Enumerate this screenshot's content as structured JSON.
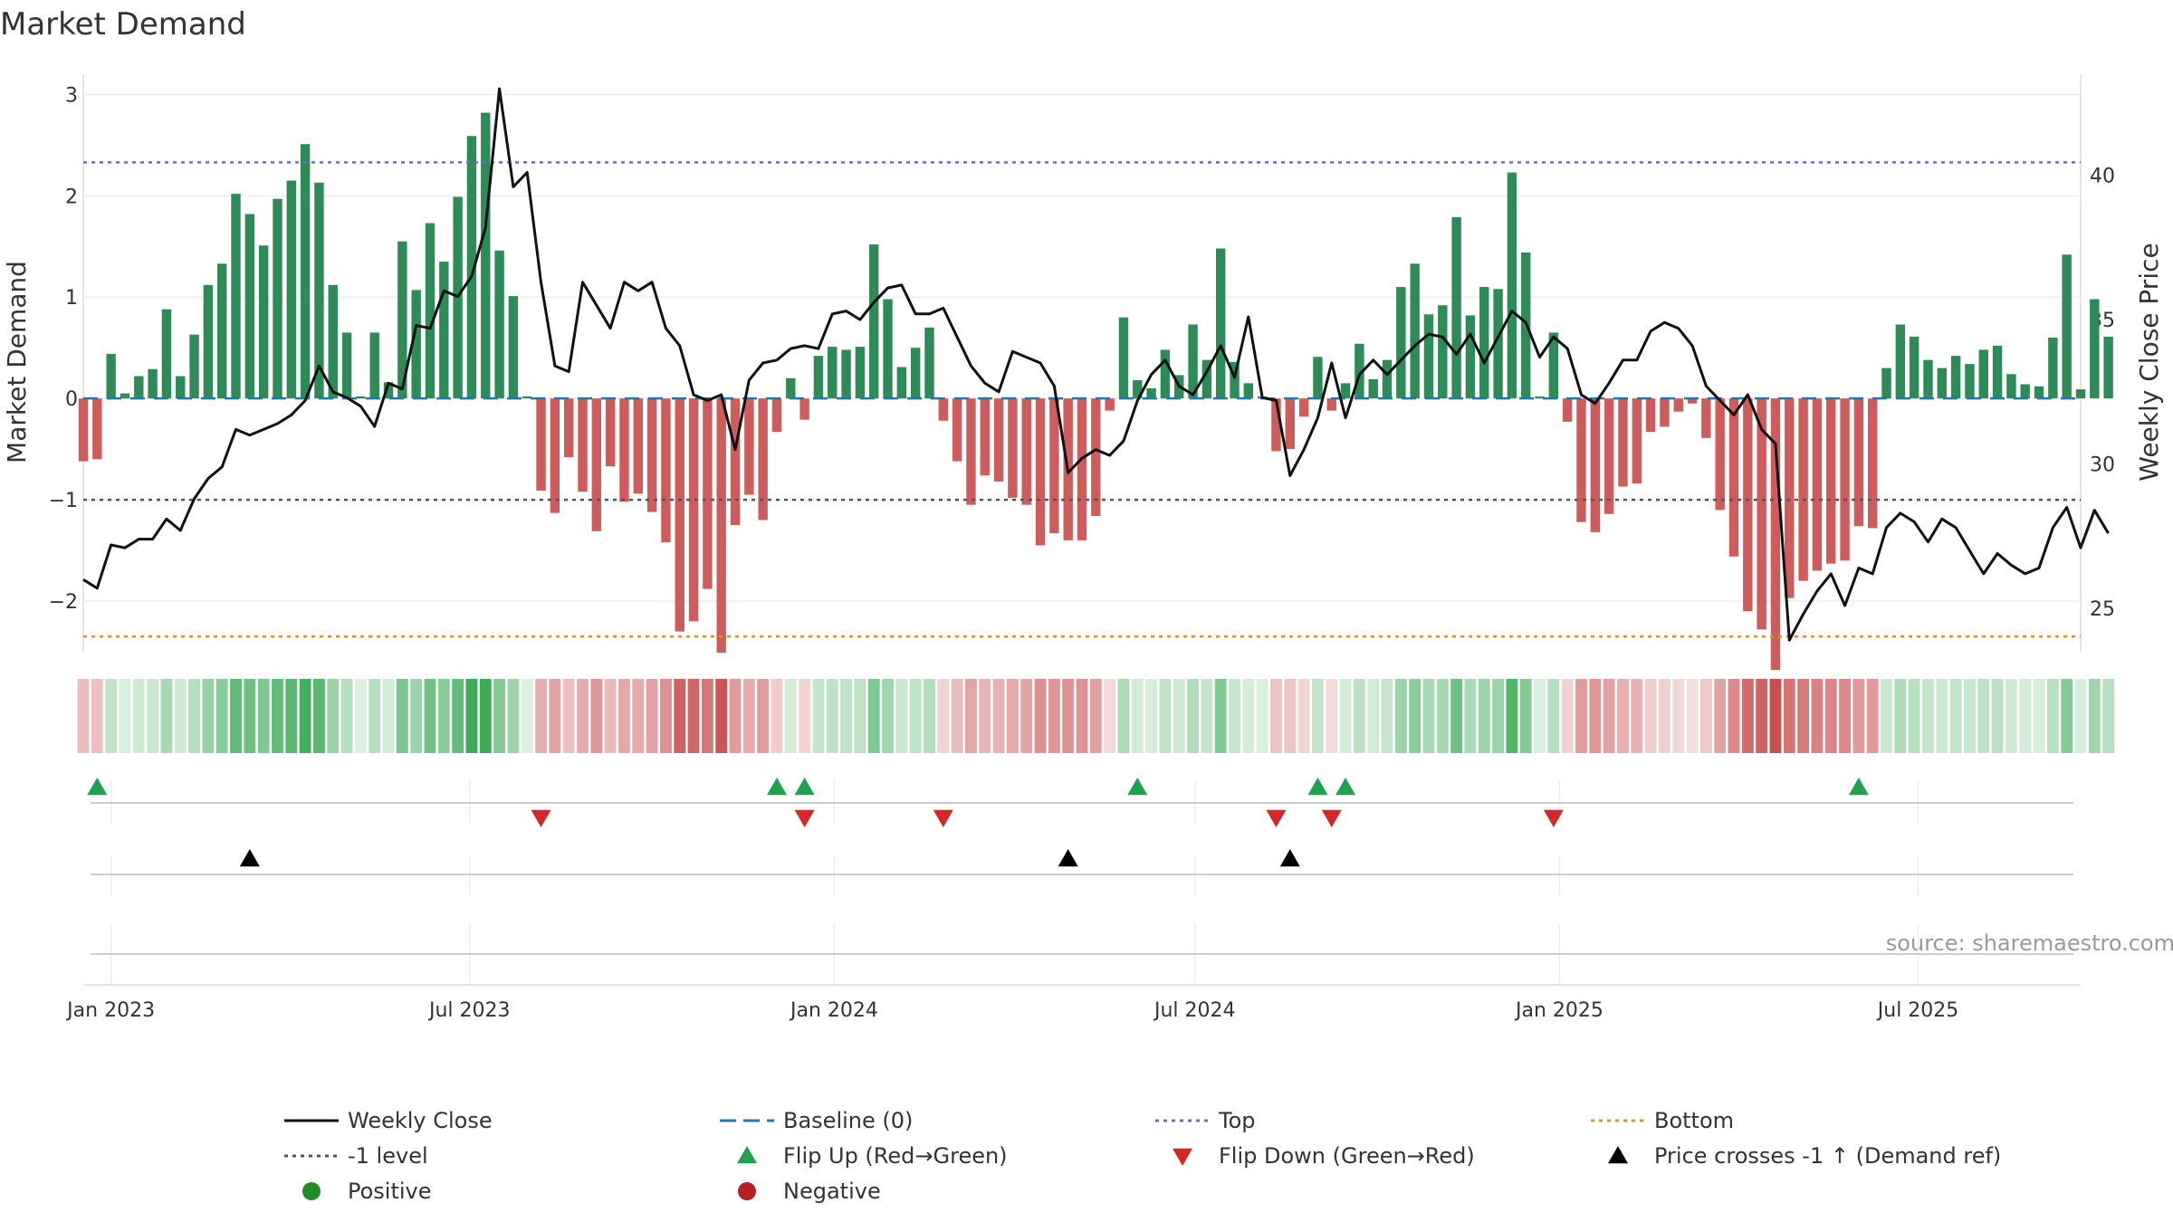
{
  "chart_data": {
    "type": "bar",
    "title": "Market Demand",
    "ylabel": "Market Demand",
    "y2label": "Weekly Close Price",
    "ylim": [
      -2.5,
      3.2
    ],
    "y_ticks": [
      3,
      2,
      1,
      0,
      -1,
      -2
    ],
    "y_tick_labels": [
      "3",
      "2",
      "1",
      "0",
      "−1",
      "−2"
    ],
    "y2lim": [
      23.5,
      43.5
    ],
    "y2_ticks": [
      40,
      35,
      30,
      25
    ],
    "y2_tick_labels": [
      "40",
      "35",
      "30",
      "25"
    ],
    "x_start": "2022-12-18",
    "x_end": "2025-09-21",
    "x_tick_dates": [
      "2023-01-01",
      "2023-07-01",
      "2024-01-01",
      "2024-07-01",
      "2025-01-01",
      "2025-07-01"
    ],
    "x_tick_labels": [
      "Jan 2023",
      "Jul 2023",
      "Jan 2024",
      "Jul 2024",
      "Jan 2025",
      "Jul 2025"
    ],
    "first_week": "2022-12-18",
    "reference_lines": {
      "top": 2.33,
      "bottom": -2.35,
      "minus_one": -1,
      "baseline": 0
    },
    "colors": {
      "positive": "#2e8b57",
      "negative": "#cd5c5c",
      "price": "#111111",
      "baseline": "#1f77b4",
      "top": "#6c6cc8",
      "bottom": "#e09020",
      "minus_one": "#555555",
      "flip_up": "#22a050",
      "flip_down": "#d62728",
      "cross": "#000000",
      "legend_positive": "#228b22",
      "legend_negative": "#b22222"
    },
    "demand": [
      -0.62,
      -0.6,
      0.44,
      0.05,
      0.22,
      0.29,
      0.88,
      0.22,
      0.63,
      1.12,
      1.33,
      2.02,
      1.82,
      1.51,
      1.97,
      2.15,
      2.51,
      2.13,
      1.12,
      0.65,
      0.02,
      0.65,
      0.16,
      1.55,
      1.07,
      1.73,
      1.35,
      1.99,
      2.59,
      2.82,
      1.46,
      1.01,
      0.02,
      -0.91,
      -1.13,
      -0.58,
      -0.92,
      -1.31,
      -0.67,
      -1.02,
      -0.94,
      -1.12,
      -1.42,
      -2.3,
      -2.2,
      -1.88,
      -2.51,
      -1.25,
      -0.95,
      -1.2,
      -0.33,
      0.2,
      -0.21,
      0.42,
      0.51,
      0.48,
      0.51,
      1.52,
      0.98,
      0.31,
      0.5,
      0.7,
      -0.22,
      -0.62,
      -1.05,
      -0.76,
      -0.82,
      -0.98,
      -1.05,
      -1.45,
      -1.33,
      -1.4,
      -1.4,
      -1.16,
      -0.12,
      0.8,
      0.18,
      0.1,
      0.48,
      0.23,
      0.73,
      0.38,
      1.48,
      0.36,
      0.15,
      0.02,
      -0.52,
      -0.5,
      -0.18,
      0.41,
      -0.12,
      0.15,
      0.54,
      0.19,
      0.38,
      1.1,
      1.33,
      0.83,
      0.92,
      1.79,
      0.82,
      1.1,
      1.08,
      2.23,
      1.44,
      0.02,
      0.65,
      -0.23,
      -1.22,
      -1.32,
      -1.14,
      -0.87,
      -0.84,
      -0.33,
      -0.28,
      -0.13,
      -0.05,
      -0.39,
      -1.1,
      -1.56,
      -2.1,
      -2.28,
      -2.68,
      -1.97,
      -1.8,
      -1.7,
      -1.63,
      -1.6,
      -1.26,
      -1.28,
      0.3,
      0.73,
      0.61,
      0.38,
      0.3,
      0.42,
      0.34,
      0.48,
      0.52,
      0.24,
      0.14,
      0.12,
      0.6,
      1.42,
      0.09,
      0.98,
      0.61
    ],
    "price": [
      26.0,
      25.7,
      27.2,
      27.1,
      27.4,
      27.4,
      28.1,
      27.7,
      28.8,
      29.5,
      29.9,
      31.2,
      31.0,
      31.2,
      31.4,
      31.7,
      32.2,
      33.4,
      32.5,
      32.3,
      32.0,
      31.3,
      32.8,
      32.6,
      34.8,
      34.7,
      36.0,
      35.8,
      36.5,
      38.2,
      43.0,
      39.6,
      40.1,
      36.3,
      33.4,
      33.2,
      36.3,
      35.5,
      34.7,
      36.3,
      36.0,
      36.3,
      34.7,
      34.1,
      32.4,
      32.2,
      32.4,
      30.5,
      32.9,
      33.5,
      33.6,
      34.0,
      34.1,
      34.0,
      35.2,
      35.3,
      35.0,
      35.6,
      36.1,
      36.2,
      35.2,
      35.2,
      35.4,
      34.4,
      33.4,
      32.8,
      32.5,
      33.9,
      33.7,
      33.5,
      32.7,
      29.7,
      30.2,
      30.5,
      30.3,
      30.8,
      32.2,
      33.1,
      33.6,
      32.7,
      32.4,
      33.2,
      34.1,
      33.0,
      35.1,
      32.3,
      32.2,
      29.6,
      30.5,
      31.6,
      33.5,
      31.6,
      33.1,
      33.6,
      33.1,
      33.6,
      34.1,
      34.5,
      34.4,
      33.8,
      34.5,
      33.5,
      34.4,
      35.3,
      34.9,
      33.7,
      34.4,
      34.0,
      32.4,
      32.1,
      32.8,
      33.6,
      33.6,
      34.6,
      34.9,
      34.7,
      34.1,
      32.7,
      32.2,
      31.7,
      32.4,
      31.2,
      30.7,
      23.9,
      24.8,
      25.6,
      26.2,
      25.1,
      26.4,
      26.2,
      27.8,
      28.3,
      28.0,
      27.3,
      28.1,
      27.8,
      27.0,
      26.2,
      26.9,
      26.5,
      26.2,
      26.4,
      27.8,
      28.5,
      27.1,
      28.4,
      27.6
    ],
    "flip_up_weeks": [
      1,
      50,
      52,
      76,
      89,
      91,
      128
    ],
    "flip_down_weeks": [
      33,
      52,
      62,
      86,
      90,
      106
    ],
    "cross_weeks": [
      12,
      71,
      87
    ],
    "legend": [
      {
        "label": "Weekly Close",
        "marker": "line",
        "color": "#111111"
      },
      {
        "label": "Baseline (0)",
        "marker": "dash",
        "color": "#1f77b4"
      },
      {
        "label": "Top",
        "marker": "dot",
        "color": "#6c6cc8"
      },
      {
        "label": "Bottom",
        "marker": "dot",
        "color": "#e09020"
      },
      {
        "label": "-1 level",
        "marker": "dot",
        "color": "#555555"
      },
      {
        "label": "Flip Up (Red→Green)",
        "marker": "tri-up",
        "color": "#22a050"
      },
      {
        "label": "Flip Down (Green→Red)",
        "marker": "tri-down",
        "color": "#d62728"
      },
      {
        "label": "Price crosses -1 ↑ (Demand ref)",
        "marker": "tri-up",
        "color": "#000000"
      },
      {
        "label": "Positive",
        "marker": "circle",
        "color": "#228b22"
      },
      {
        "label": "Negative",
        "marker": "circle",
        "color": "#b22222"
      }
    ],
    "source": "source: sharemaestro.com"
  }
}
